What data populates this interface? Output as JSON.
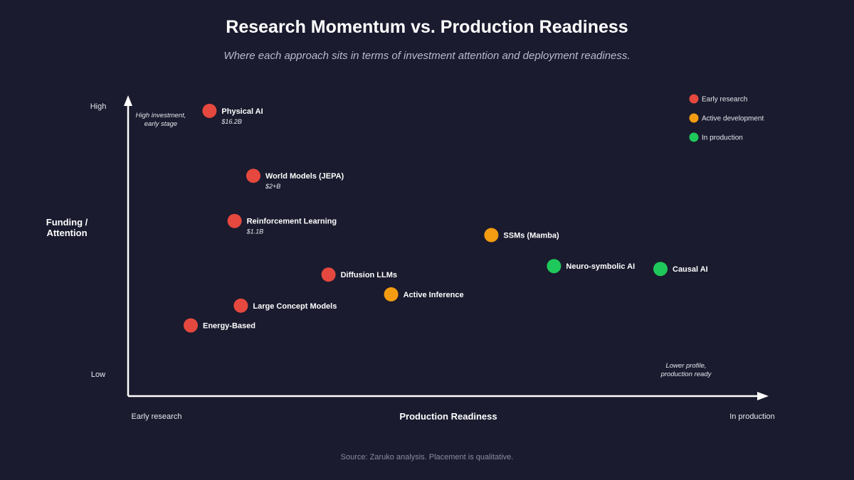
{
  "title": "Research Momentum vs. Production Readiness",
  "subtitle": "Where each approach sits in terms of investment attention and deployment readiness.",
  "source": "Source: Zaruko analysis. Placement is qualitative.",
  "colors": {
    "background": "#1a1b2e",
    "early": "#e5483e",
    "active": "#f39c12",
    "production": "#1fc85a"
  },
  "chart_data": {
    "type": "scatter",
    "xlabel": "Production Readiness",
    "ylabel_lines": [
      "Funding /",
      "Attention"
    ],
    "x_tick_labels": {
      "low": "Early research",
      "high": "In production"
    },
    "y_tick_labels": {
      "low": "Low",
      "high": "High"
    },
    "xlim": [
      0,
      100
    ],
    "ylim": [
      0,
      100
    ],
    "grid": false,
    "legend_position": "top-right",
    "annotations": {
      "top_left": [
        "High investment,",
        "early stage"
      ],
      "bottom_right": [
        "Lower profile,",
        "production ready"
      ]
    },
    "legend": [
      {
        "key": "early",
        "label": "Early research"
      },
      {
        "key": "active",
        "label": "Active development"
      },
      {
        "key": "production",
        "label": "In production"
      }
    ],
    "points": [
      {
        "label": "Physical AI",
        "sublabel": "$16.2B",
        "x": 13,
        "y": 96,
        "status": "early"
      },
      {
        "label": "World Models (JEPA)",
        "sublabel": "$2+B",
        "x": 20,
        "y": 73,
        "status": "early"
      },
      {
        "label": "Reinforcement Learning",
        "sublabel": "$1.1B",
        "x": 17,
        "y": 57,
        "status": "early"
      },
      {
        "label": "SSMs (Mamba)",
        "sublabel": "",
        "x": 58,
        "y": 52,
        "status": "active"
      },
      {
        "label": "Neuro-symbolic AI",
        "sublabel": "",
        "x": 68,
        "y": 41,
        "status": "production"
      },
      {
        "label": "Causal AI",
        "sublabel": "",
        "x": 85,
        "y": 40,
        "status": "production"
      },
      {
        "label": "Diffusion LLMs",
        "sublabel": "",
        "x": 32,
        "y": 38,
        "status": "early"
      },
      {
        "label": "Active Inference",
        "sublabel": "",
        "x": 42,
        "y": 31,
        "status": "active"
      },
      {
        "label": "Large Concept Models",
        "sublabel": "",
        "x": 18,
        "y": 27,
        "status": "early"
      },
      {
        "label": "Energy-Based",
        "sublabel": "",
        "x": 10,
        "y": 20,
        "status": "early"
      }
    ]
  }
}
